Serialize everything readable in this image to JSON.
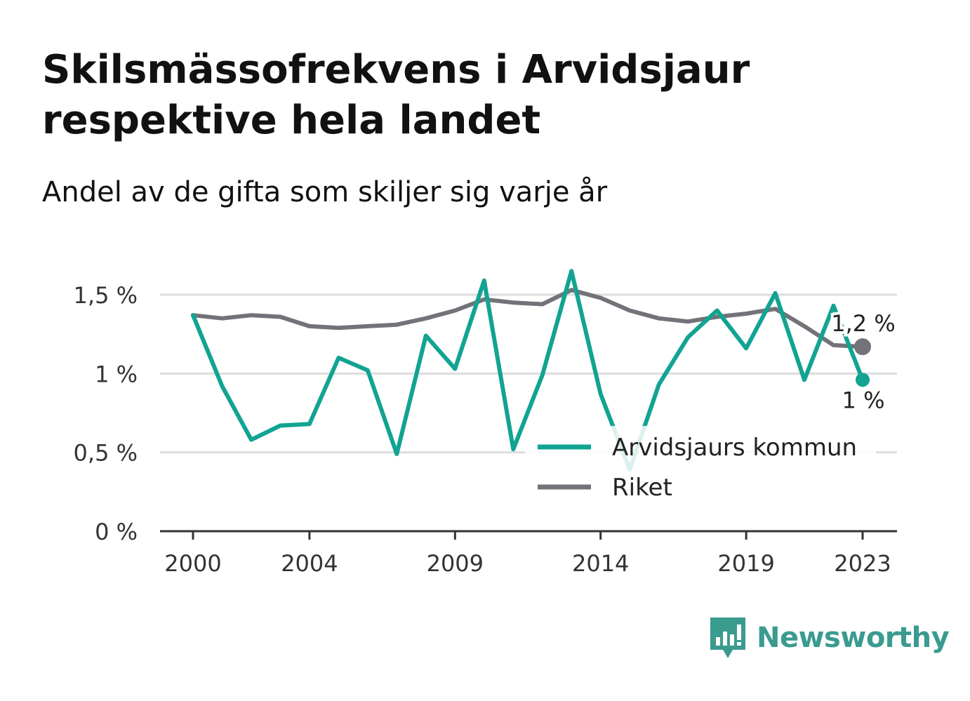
{
  "title": "Skilsmässofrekvens i Arvidsjaur respektive hela landet",
  "subtitle": "Andel av de gifta som skiljer sig varje år",
  "brand": {
    "name": "Newsworthy",
    "icon": "bar-chart-speech-bubble-icon",
    "color": "#3a9b8f"
  },
  "colors": {
    "kommun": "#12a392",
    "riket": "#737279",
    "grid": "#dddddd",
    "axis": "#333333"
  },
  "chart_data": {
    "type": "line",
    "x": [
      2000,
      2001,
      2002,
      2003,
      2004,
      2005,
      2006,
      2007,
      2008,
      2009,
      2010,
      2011,
      2012,
      2013,
      2014,
      2015,
      2016,
      2017,
      2018,
      2019,
      2020,
      2021,
      2022,
      2023
    ],
    "series": [
      {
        "name": "Arvidsjaurs kommun",
        "color": "#12a392",
        "values": [
          1.37,
          0.92,
          0.58,
          0.67,
          0.68,
          1.1,
          1.02,
          0.49,
          1.24,
          1.03,
          1.59,
          0.52,
          0.99,
          1.65,
          0.87,
          0.39,
          0.93,
          1.23,
          1.4,
          1.16,
          1.51,
          0.96,
          1.43,
          0.96
        ]
      },
      {
        "name": "Riket",
        "color": "#737279",
        "values": [
          1.37,
          1.35,
          1.37,
          1.36,
          1.3,
          1.29,
          1.3,
          1.31,
          1.35,
          1.4,
          1.47,
          1.45,
          1.44,
          1.53,
          1.48,
          1.4,
          1.35,
          1.33,
          1.36,
          1.38,
          1.41,
          1.3,
          1.18,
          1.17
        ]
      }
    ],
    "end_labels": [
      "1 %",
      "1,2 %"
    ],
    "yticks": [
      0,
      0.5,
      1,
      1.5
    ],
    "ytick_labels": [
      "0 %",
      "0,5 %",
      "1 %",
      "1,5 %"
    ],
    "xticks": [
      2000,
      2004,
      2009,
      2014,
      2019,
      2023
    ],
    "xtick_labels": [
      "2000",
      "2004",
      "2009",
      "2014",
      "2019",
      "2023"
    ],
    "ylim": [
      0,
      1.7
    ],
    "xlim": [
      2000,
      2023
    ],
    "grid": true,
    "legend": "bottom-right"
  }
}
